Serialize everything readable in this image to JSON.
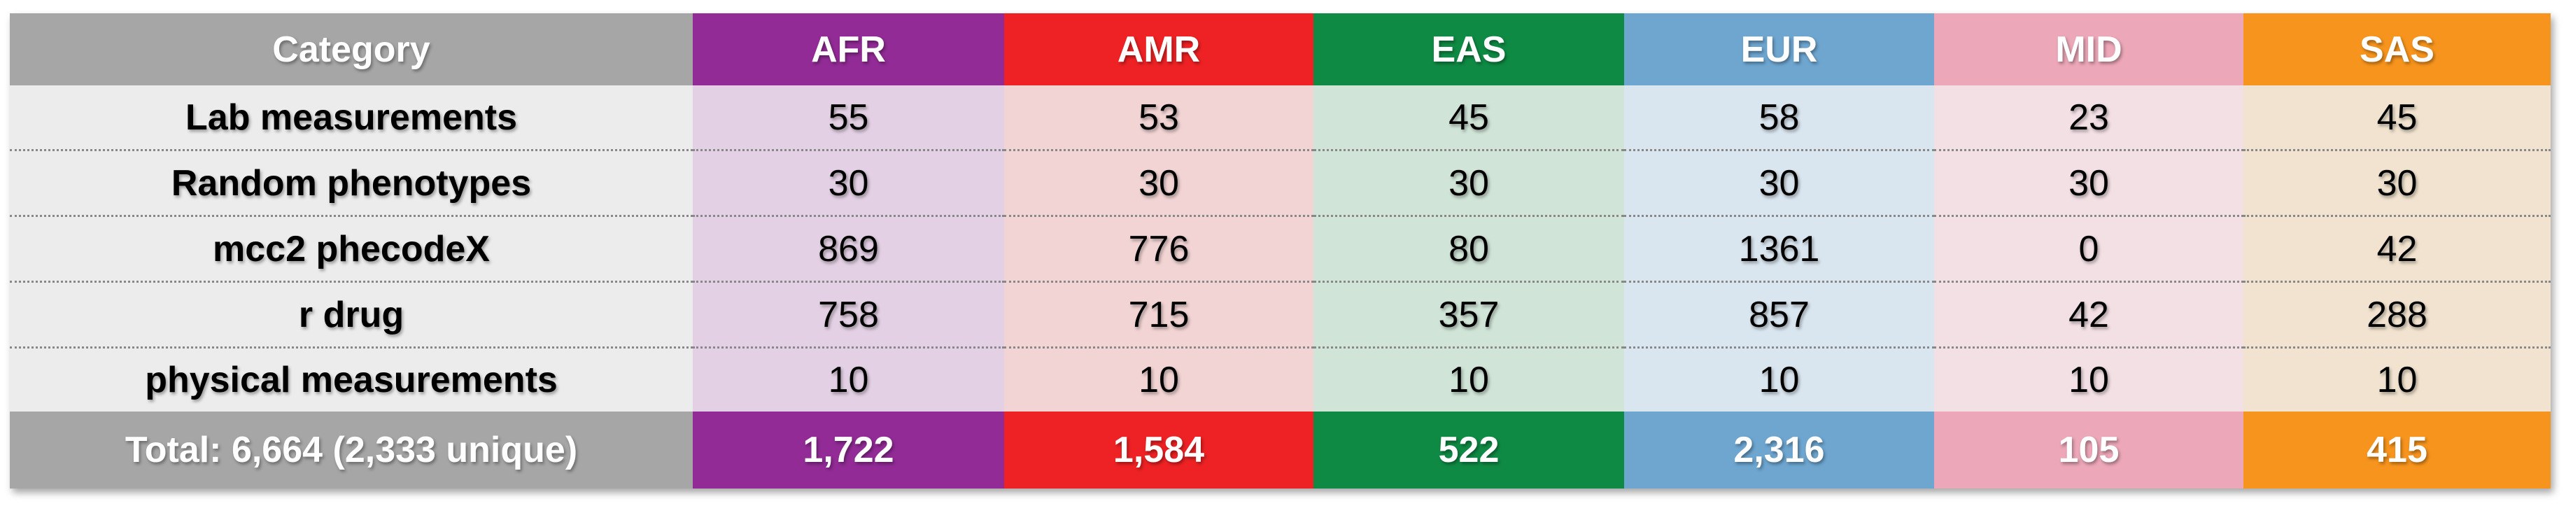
{
  "table": {
    "header": [
      "Category",
      "AFR",
      "AMR",
      "EAS",
      "EUR",
      "MID",
      "SAS"
    ],
    "rows": [
      [
        "Lab measurements",
        "55",
        "53",
        "45",
        "58",
        "23",
        "45"
      ],
      [
        "Random phenotypes",
        "30",
        "30",
        "30",
        "30",
        "30",
        "30"
      ],
      [
        "mcc2 phecodeX",
        "869",
        "776",
        "80",
        "1361",
        "0",
        "42"
      ],
      [
        "r drug",
        "758",
        "715",
        "357",
        "857",
        "42",
        "288"
      ],
      [
        "physical measurements",
        "10",
        "10",
        "10",
        "10",
        "10",
        "10"
      ]
    ],
    "total": [
      "Total: 6,664 (2,333 unique)",
      "1,722",
      "1,584",
      "522",
      "2,316",
      "105",
      "415"
    ]
  }
}
